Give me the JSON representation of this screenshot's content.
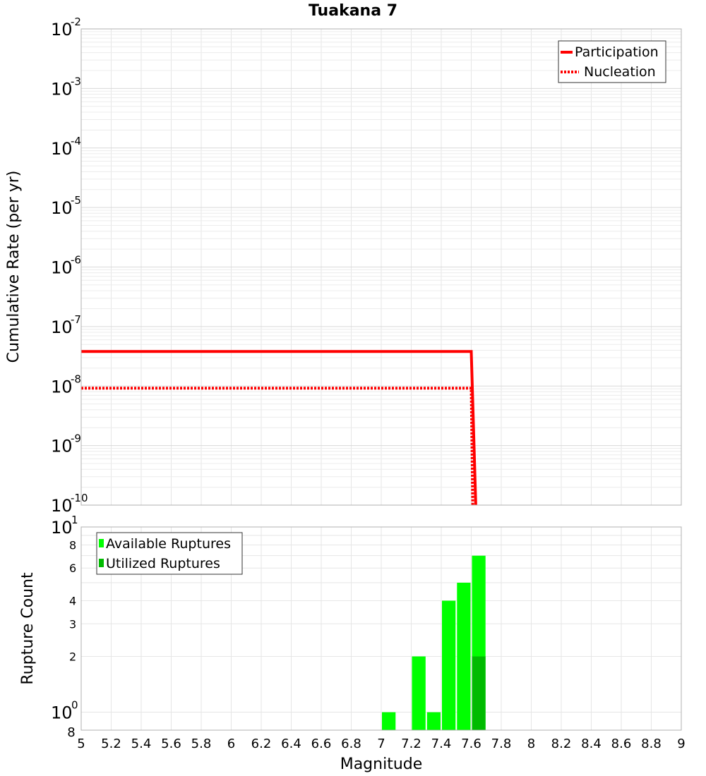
{
  "chart_data": [
    {
      "type": "line",
      "title": "Tuakana 7",
      "xlabel": "",
      "ylabel": "Cumulative Rate (per yr)",
      "xlim": [
        5,
        9
      ],
      "ylim": [
        1e-10,
        0.01
      ],
      "yscale": "log",
      "grid": true,
      "legend_position": "top-right",
      "y_ticks": [
        {
          "base": "10",
          "exp": "-2",
          "value": 0.01
        },
        {
          "base": "10",
          "exp": "-3",
          "value": 0.001
        },
        {
          "base": "10",
          "exp": "-4",
          "value": 0.0001
        },
        {
          "base": "10",
          "exp": "-5",
          "value": 1e-05
        },
        {
          "base": "10",
          "exp": "-6",
          "value": 1e-06
        },
        {
          "base": "10",
          "exp": "-7",
          "value": 1e-07
        },
        {
          "base": "10",
          "exp": "-8",
          "value": 1e-08
        },
        {
          "base": "10",
          "exp": "-9",
          "value": 1e-09
        },
        {
          "base": "10",
          "exp": "-10",
          "value": 1e-10
        }
      ],
      "series": [
        {
          "name": "Participation",
          "color": "#ff0000",
          "style": "solid",
          "x": [
            5.0,
            7.6,
            7.63
          ],
          "y": [
            3.8e-08,
            3.8e-08,
            1e-10
          ]
        },
        {
          "name": "Nucleation",
          "color": "#ff0000",
          "style": "dotted",
          "x": [
            5.0,
            7.6,
            7.61
          ],
          "y": [
            9.2e-09,
            9.2e-09,
            1e-10
          ]
        }
      ]
    },
    {
      "type": "bar",
      "xlabel": "Magnitude",
      "ylabel": "Rupture Count",
      "xlim": [
        5,
        9
      ],
      "ylim": [
        0.8,
        10
      ],
      "yscale": "log",
      "grid": true,
      "legend_position": "top-left",
      "bar_width": 0.1,
      "x_ticks": [
        "5",
        "5.2",
        "5.4",
        "5.6",
        "5.8",
        "6",
        "6.2",
        "6.4",
        "6.6",
        "6.8",
        "7",
        "7.2",
        "7.4",
        "7.6",
        "7.8",
        "8",
        "8.2",
        "8.4",
        "8.6",
        "8.8",
        "9"
      ],
      "y_ticks_minor": [
        {
          "label": "8",
          "value": 8
        },
        {
          "label": "6",
          "value": 6
        },
        {
          "label": "4",
          "value": 4
        },
        {
          "label": "3",
          "value": 3
        },
        {
          "label": "2",
          "value": 2
        }
      ],
      "y_ticks_major": [
        {
          "base": "10",
          "exp": "1",
          "value": 10
        },
        {
          "base": "10",
          "exp": "0",
          "value": 1
        }
      ],
      "y_bottom_label": "8",
      "series": [
        {
          "name": "Available Ruptures",
          "color": "#00ff00",
          "x": [
            7.05,
            7.25,
            7.35,
            7.45,
            7.55,
            7.65
          ],
          "values": [
            1,
            2,
            1,
            4,
            5,
            7
          ]
        },
        {
          "name": "Utilized Ruptures",
          "color": "#00bb00",
          "x": [
            7.65
          ],
          "values": [
            2
          ]
        }
      ]
    }
  ]
}
